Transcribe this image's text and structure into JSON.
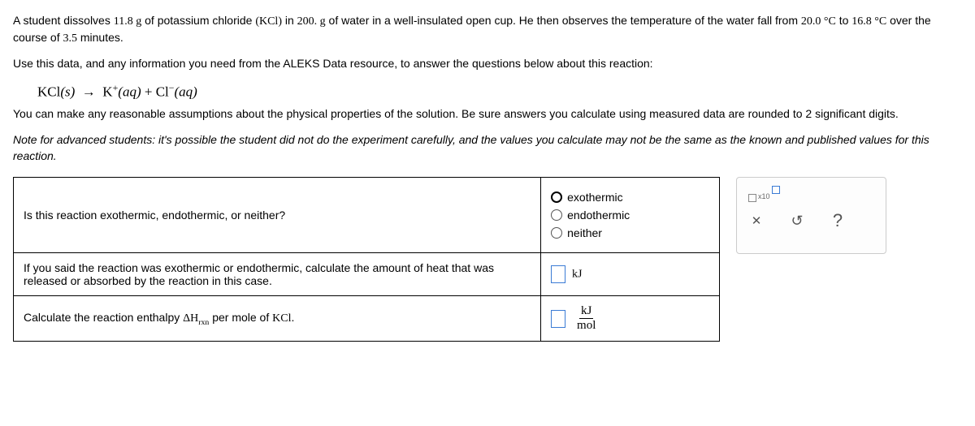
{
  "problem": {
    "p1_a": "A student dissolves ",
    "mass_kcl": "11.8 g",
    "p1_b": " of potassium chloride ",
    "formula_paren": "(KCl)",
    "p1_c": " in ",
    "mass_water": "200. g",
    "p1_d": " of water in a well-insulated open cup. He then observes the temperature of the water fall from ",
    "t_initial": "20.0 °C",
    "p1_e": " to ",
    "t_final": "16.8 °C",
    "p1_f": " over the course of ",
    "duration": "3.5",
    "p1_g": " minutes.",
    "p2": "Use this data, and any information you need from the ALEKS Data resource, to answer the questions below about this reaction:",
    "eq_reactant": "KCl",
    "eq_state_s": "(s)",
    "eq_arrow": "→",
    "eq_prod1": "K",
    "eq_sup1": "+",
    "eq_state_aq": "(aq)",
    "eq_plus": " + ",
    "eq_prod2": "Cl",
    "eq_sup2": "−",
    "p3": "You can make any reasonable assumptions about the physical properties of the solution. Be sure answers you calculate using measured data are rounded to 2 significant digits.",
    "p4_prefix": "Note for advanced students:",
    "p4": " it's possible the student did not do the experiment carefully, and the values you calculate may not be the same as the known and published values for this reaction."
  },
  "questions": {
    "q1": "Is this reaction exothermic, endothermic, or neither?",
    "q1_options": {
      "a": "exothermic",
      "b": "endothermic",
      "c": "neither"
    },
    "q2": "If you said the reaction was exothermic or endothermic, calculate the amount of heat that was released or absorbed by the reaction in this case.",
    "q2_unit": "kJ",
    "q3_a": "Calculate the reaction enthalpy ",
    "q3_dH": "ΔH",
    "q3_sub": "rxn",
    "q3_b": " per mole of ",
    "q3_species": "KCl",
    "q3_c": ".",
    "q3_unit_num": "kJ",
    "q3_unit_den": "mol"
  },
  "toolbox": {
    "sci_label": "x10",
    "close": "✕",
    "undo": "↺",
    "help": "?"
  }
}
